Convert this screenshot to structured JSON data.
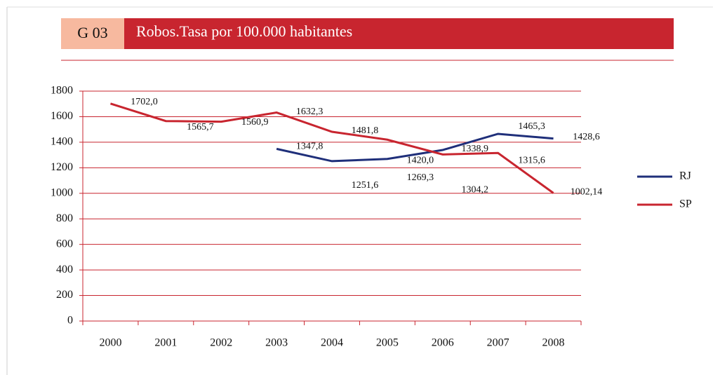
{
  "header": {
    "code": "G 03",
    "title": "Robos.Tasa por 100.000 habitantes"
  },
  "chart_data": {
    "type": "line",
    "categories": [
      "2000",
      "2001",
      "2002",
      "2003",
      "2004",
      "2005",
      "2006",
      "2007",
      "2008"
    ],
    "series": [
      {
        "name": "RJ",
        "color": "#1f2f7a",
        "values": [
          null,
          null,
          null,
          1347.8,
          1251.6,
          1269.3,
          1338.9,
          1465.3,
          1428.6
        ],
        "value_labels": [
          null,
          null,
          null,
          "1347,8",
          "1251,6",
          "1269,3",
          "1338,9",
          "1465,3",
          "1428,6"
        ]
      },
      {
        "name": "SP",
        "color": "#c8252f",
        "values": [
          1702.0,
          1565.7,
          1560.9,
          1632.3,
          1481.8,
          1420.0,
          1304.2,
          1315.6,
          1002.14
        ],
        "value_labels": [
          "1702,0",
          "1565,7",
          "1560,9",
          "1632,3",
          "1481,8",
          "1420,0",
          "1304,2",
          "1315,6",
          "1002,14"
        ]
      }
    ],
    "ylim": [
      0,
      1800
    ],
    "yticks": [
      0,
      200,
      400,
      600,
      800,
      1000,
      1200,
      1400,
      1600,
      1800
    ],
    "grid": true,
    "grid_color": "#c8252f",
    "legend": "right"
  }
}
